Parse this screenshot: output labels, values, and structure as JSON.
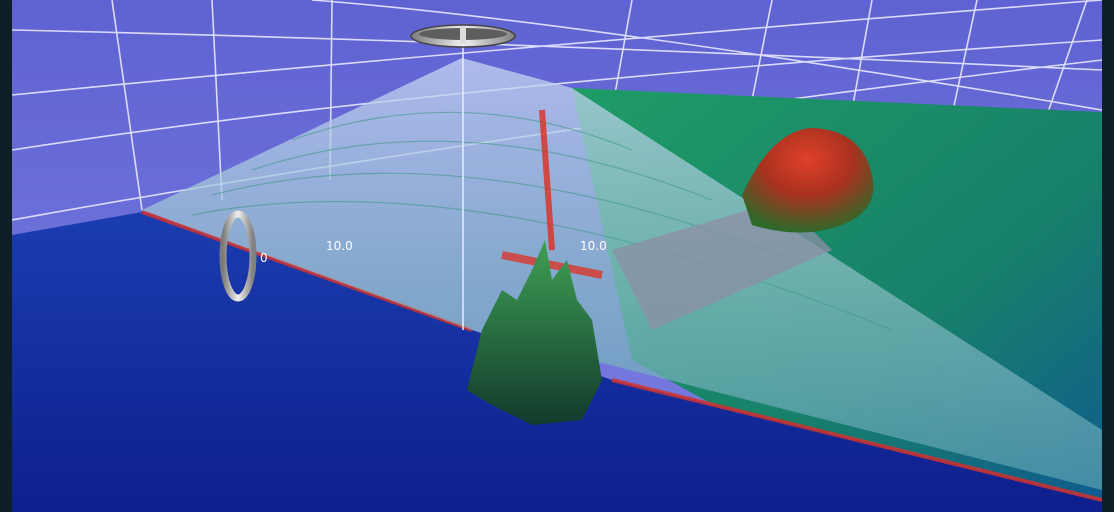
{
  "scene": {
    "description_free": true,
    "range_labels": {
      "left": "10.0",
      "right": "10.0",
      "ring_marker": "0"
    },
    "colors": {
      "background_frame": "#0f1f26",
      "sky": "#6e6fd8",
      "deep_water_floor": "#1a3aa8",
      "shelf": "#1f8a5a",
      "sonar_fan": "#aebfe8",
      "seabed_ridge": "#d0322e"
    }
  }
}
